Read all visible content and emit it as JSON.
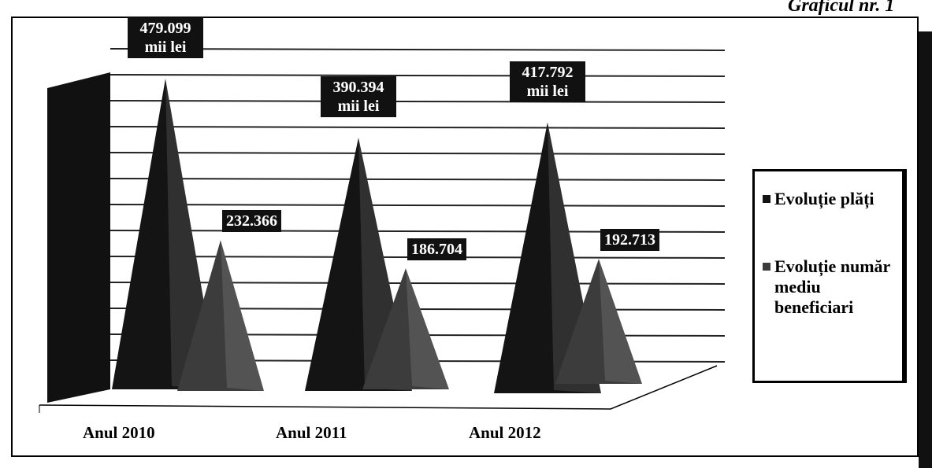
{
  "chart_data": {
    "type": "pyramid",
    "title": "Graficul nr. 1",
    "categories": [
      "Anul 2010",
      "Anul 2011",
      "Anul 2012"
    ],
    "series": [
      {
        "name": "Evoluție plăți",
        "color": "#141414",
        "values": [
          479099,
          390394,
          417792
        ],
        "value_labels": [
          "479.099 mii lei",
          "390.394 mii lei",
          "417.792 mii lei"
        ]
      },
      {
        "name": "Evoluție număr mediu beneficiari",
        "color": "#3c3c3c",
        "values": [
          232366,
          186704,
          192713
        ],
        "value_labels": [
          "232.366",
          "186.704",
          "192.713"
        ]
      }
    ],
    "legend": "right"
  }
}
